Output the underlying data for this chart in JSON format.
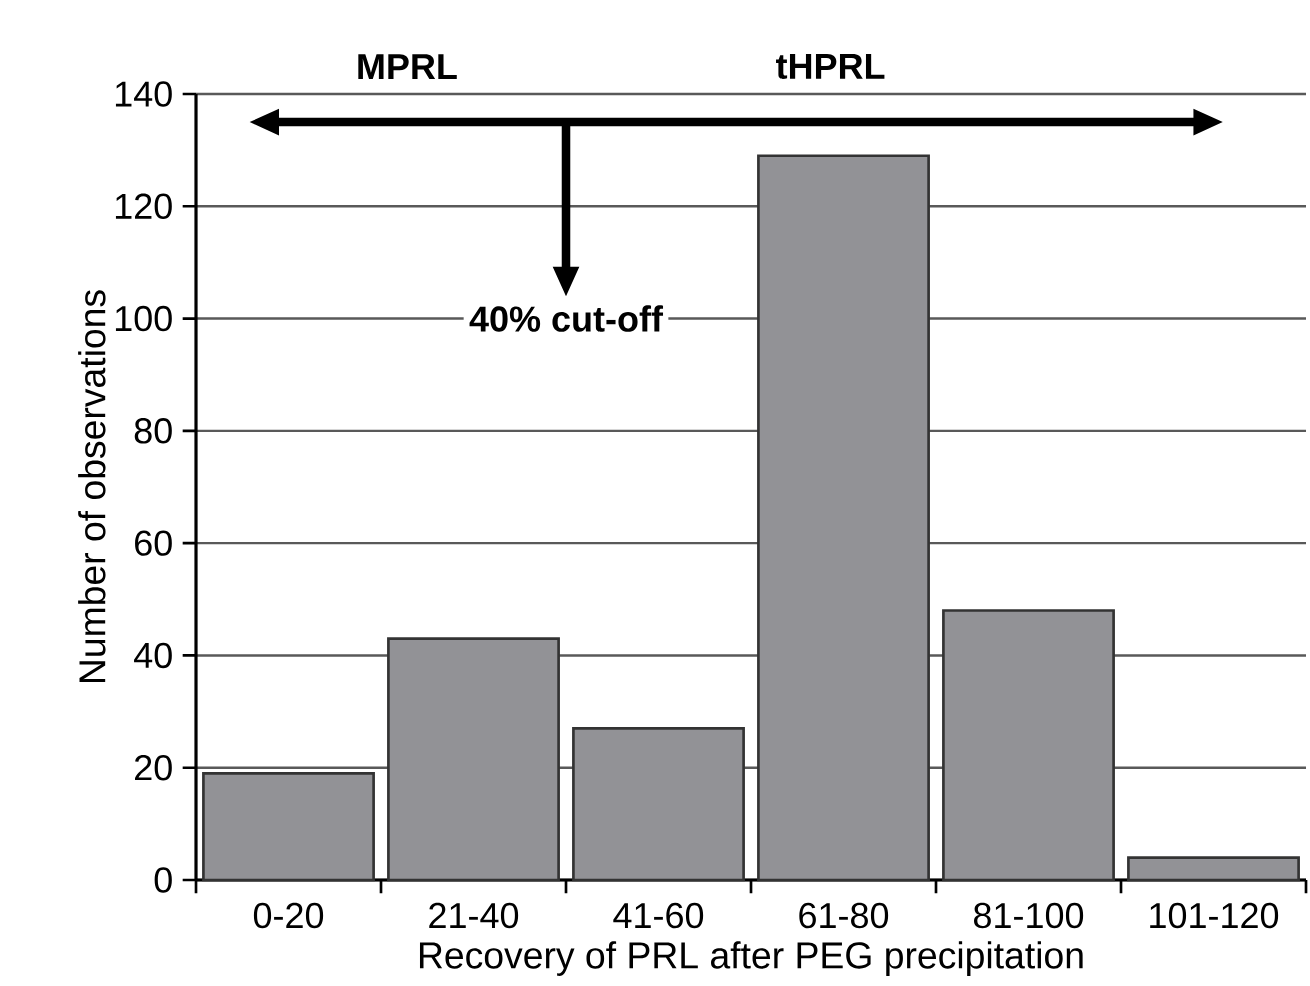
{
  "chart_data": {
    "type": "bar",
    "xlabel": "Recovery of PRL after PEG precipitation",
    "ylabel": "Number of observations",
    "categories": [
      "0-20",
      "21-40",
      "41-60",
      "61-80",
      "81-100",
      "101-120"
    ],
    "values": [
      19,
      43,
      27,
      129,
      48,
      4
    ],
    "color": "#929296",
    "ylim": [
      0,
      140
    ],
    "yticks": [
      0,
      20,
      40,
      60,
      80,
      100,
      120,
      140
    ],
    "grid": "y",
    "annotations": [
      "MPRL",
      "tHPRL",
      "40% cut-off"
    ]
  }
}
